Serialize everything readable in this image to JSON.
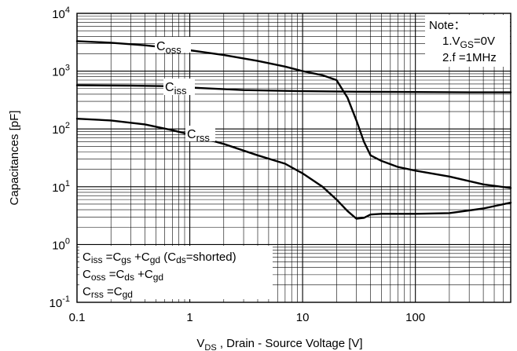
{
  "chart_data": {
    "type": "line",
    "title": "",
    "xlabel": "V_DS , Drain - Source Voltage [V]",
    "ylabel": "Capacitances [pF]",
    "x_scale": "log",
    "y_scale": "log",
    "xlim": [
      0.1,
      700
    ],
    "ylim": [
      0.1,
      10000
    ],
    "grid": true,
    "x_tick_labels": [
      "0.1",
      "1",
      "10",
      "100"
    ],
    "x_tick_values": [
      0.1,
      1,
      10,
      100
    ],
    "y_tick_exponents": [
      "-1",
      "0",
      "1",
      "2",
      "3",
      "4"
    ],
    "y_tick_values": [
      0.1,
      1,
      10,
      100,
      1000,
      10000
    ],
    "note": {
      "title": "Note：",
      "line1_prefix": "1.V",
      "line1_sub": "GS",
      "line1_suffix": "=0V",
      "line2": "2.f =1MHz"
    },
    "formulas": {
      "ciss": {
        "a": "C",
        "a_sub": "iss",
        "b": " =C",
        "b_sub": "gs",
        "c": " +C",
        "c_sub": "gd",
        "d": "  (C",
        "d_sub": "ds",
        "e": "=shorted)"
      },
      "coss": {
        "a": "C",
        "a_sub": "oss",
        "b": " =C",
        "b_sub": "ds",
        "c": " +C",
        "c_sub": "gd"
      },
      "crss": {
        "a": "C",
        "a_sub": "rss",
        "b": " =C",
        "b_sub": "gd"
      }
    },
    "series": [
      {
        "name": "Coss",
        "label_main": "C",
        "label_sub": "oss",
        "x": [
          0.1,
          0.2,
          0.4,
          0.7,
          1,
          2,
          4,
          7,
          10,
          15,
          20,
          25,
          30,
          35,
          40,
          50,
          70,
          100,
          200,
          400,
          700
        ],
        "y": [
          3300,
          3100,
          2800,
          2500,
          2300,
          1900,
          1500,
          1200,
          1000,
          850,
          700,
          350,
          140,
          60,
          35,
          28,
          22,
          19,
          15,
          11,
          9.5
        ]
      },
      {
        "name": "Ciss",
        "label_main": "C",
        "label_sub": "iss",
        "x": [
          0.1,
          0.3,
          0.6,
          1,
          3,
          10,
          30,
          100,
          300,
          700
        ],
        "y": [
          570,
          560,
          550,
          520,
          470,
          450,
          440,
          435,
          430,
          430
        ]
      },
      {
        "name": "Crss",
        "label_main": "C",
        "label_sub": "rss",
        "x": [
          0.1,
          0.2,
          0.4,
          0.7,
          1,
          2,
          4,
          7,
          10,
          15,
          20,
          25,
          30,
          35,
          40,
          50,
          70,
          100,
          200,
          400,
          700
        ],
        "y": [
          150,
          140,
          120,
          95,
          80,
          55,
          35,
          25,
          17,
          10,
          6,
          3.8,
          2.8,
          2.9,
          3.3,
          3.4,
          3.4,
          3.4,
          3.5,
          4.2,
          5.3
        ]
      }
    ]
  }
}
